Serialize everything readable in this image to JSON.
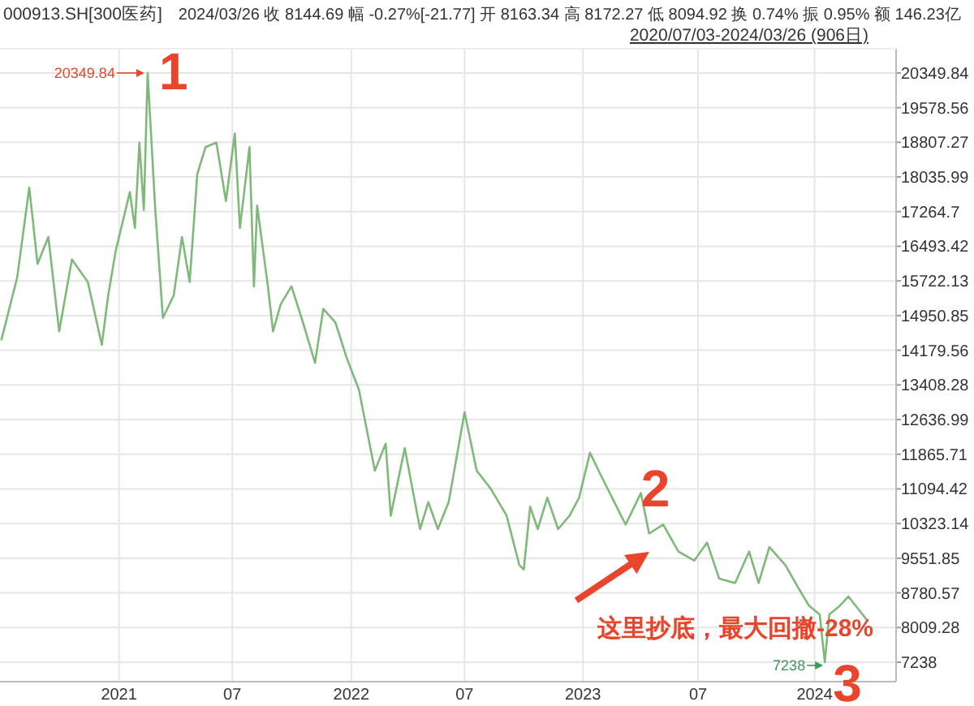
{
  "chart_data": {
    "type": "line",
    "title": "000913.SH[300医药]",
    "subtitle": "2024/03/26 收 8144.69 幅 -0.27%[-21.77] 开 8163.34 高 8172.27 低 8094.92 换 0.74% 振 0.95% 额 146.23亿",
    "x": [
      "2020-07-03",
      "2020-07-28",
      "2020-08-16",
      "2020-08-29",
      "2020-09-15",
      "2020-10-02",
      "2020-10-22",
      "2020-11-16",
      "2020-12-08",
      "2020-12-18",
      "2020-12-30",
      "2021-01-21",
      "2021-01-29",
      "2021-02-05",
      "2021-02-12",
      "2021-02-18",
      "2021-03-02",
      "2021-03-14",
      "2021-03-31",
      "2021-04-13",
      "2021-04-25",
      "2021-05-07",
      "2021-05-20",
      "2021-06-06",
      "2021-06-21",
      "2021-07-05",
      "2021-07-13",
      "2021-07-28",
      "2021-08-04",
      "2021-08-09",
      "2021-08-26",
      "2021-09-03",
      "2021-09-15",
      "2021-10-02",
      "2021-10-20",
      "2021-11-08",
      "2021-11-21",
      "2021-12-10",
      "2021-12-28",
      "2022-01-16",
      "2022-02-10",
      "2022-02-27",
      "2022-03-07",
      "2022-03-29",
      "2022-04-22",
      "2022-05-05",
      "2022-05-20",
      "2022-06-06",
      "2022-07-01",
      "2022-07-20",
      "2022-08-11",
      "2022-09-05",
      "2022-09-25",
      "2022-10-02",
      "2022-10-12",
      "2022-10-24",
      "2022-11-08",
      "2022-11-25",
      "2022-12-13",
      "2022-12-28",
      "2023-01-14",
      "2023-01-31",
      "2023-03-11",
      "2023-04-04",
      "2023-04-17",
      "2023-05-09",
      "2023-06-02",
      "2023-06-27",
      "2023-07-17",
      "2023-08-05",
      "2023-08-30",
      "2023-09-21",
      "2023-10-06",
      "2023-10-23",
      "2023-11-17",
      "2023-12-07",
      "2023-12-24",
      "2024-01-10",
      "2024-01-18",
      "2024-01-25",
      "2024-02-11",
      "2024-02-24",
      "2024-03-26"
    ],
    "series": [
      {
        "color": "#7fb97a",
        "values": [
          14400,
          15800,
          17800,
          16100,
          16700,
          14600,
          16200,
          15700,
          14300,
          15400,
          16400,
          17700,
          16900,
          18800,
          17300,
          20349.84,
          17300,
          14900,
          15400,
          16700,
          15700,
          18100,
          18700,
          18800,
          17500,
          19000,
          16900,
          18700,
          15600,
          17400,
          15600,
          14600,
          15200,
          15600,
          14800,
          13900,
          15100,
          14800,
          14000,
          13300,
          11500,
          12100,
          10500,
          12000,
          10200,
          10800,
          10200,
          10800,
          12800,
          11500,
          11100,
          10500,
          9400,
          9300,
          10700,
          10200,
          10900,
          10200,
          10500,
          10900,
          11900,
          11400,
          10300,
          11000,
          10100,
          10300,
          9700,
          9500,
          9900,
          9100,
          9000,
          9700,
          9000,
          9800,
          9400,
          8900,
          8500,
          8300,
          7238,
          8300,
          8500,
          8700,
          8144.69
        ]
      }
    ],
    "xlim": [
      "2020-07-01",
      "2024-05-09"
    ],
    "xticks": [
      {
        "value": "2021-01-04",
        "label": "2021"
      },
      {
        "value": "2021-07-01",
        "label": "07"
      },
      {
        "value": "2022-01-04",
        "label": "2022"
      },
      {
        "value": "2022-07-01",
        "label": "07"
      },
      {
        "value": "2023-01-03",
        "label": "2023"
      },
      {
        "value": "2023-07-03",
        "label": "07"
      },
      {
        "value": "2024-01-02",
        "label": "2024"
      }
    ],
    "ylim": [
      6805,
      20890
    ],
    "yticks": [
      20349.84,
      19578.56,
      18807.27,
      18035.99,
      17264.7,
      16493.42,
      15722.13,
      14950.85,
      14179.56,
      13408.28,
      12636.99,
      11865.71,
      11094.42,
      10323.14,
      9551.85,
      8780.57,
      8009.28,
      7238
    ],
    "grid": true,
    "annotations": [
      {
        "text": "20349.84",
        "x": "2021-02-18",
        "y": 20349.84
      },
      {
        "text": "1",
        "x": "2021-02-18",
        "y": 20349.84
      },
      {
        "text": "2",
        "x": "2023-04-17",
        "y": 10056
      },
      "这里抄底，最大回撤-28%",
      {
        "text": "7238",
        "x": "2024-01-18",
        "y": 7238
      },
      {
        "text": "3",
        "x": "2024-01-18",
        "y": 7238
      },
      "2020/07/03-2024/03/26 (906日)"
    ]
  }
}
